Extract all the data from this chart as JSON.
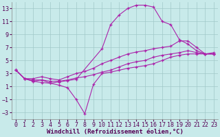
{
  "background_color": "#c8eaea",
  "grid_color": "#a0c8c8",
  "line_color": "#aa22aa",
  "xlim": [
    -0.5,
    23.5
  ],
  "ylim": [
    -4,
    14
  ],
  "xticks": [
    0,
    1,
    2,
    3,
    4,
    5,
    6,
    7,
    8,
    9,
    10,
    11,
    12,
    13,
    14,
    15,
    16,
    17,
    18,
    19,
    20,
    21,
    22,
    23
  ],
  "yticks": [
    -3,
    -1,
    1,
    3,
    5,
    7,
    9,
    11,
    13
  ],
  "xlabel": "Windchill (Refroidissement éolien,°C)",
  "xlabel_fontsize": 6.5,
  "tick_fontsize": 6.0,
  "series": [
    {
      "x": [
        0,
        1,
        2,
        3,
        4,
        5,
        6,
        7,
        10,
        11,
        12,
        13,
        14,
        15,
        16,
        17,
        18,
        19,
        20,
        21,
        22,
        23
      ],
      "y": [
        3.5,
        2.2,
        1.8,
        1.6,
        1.5,
        1.7,
        1.9,
        2.1,
        6.8,
        10.5,
        12.0,
        13.0,
        13.5,
        13.5,
        13.2,
        11.0,
        10.5,
        8.2,
        7.5,
        6.5,
        6.0,
        6.0
      ]
    },
    {
      "x": [
        0,
        1,
        2,
        3,
        4,
        5,
        6,
        7,
        8,
        9,
        10,
        11,
        12,
        13,
        14,
        15,
        16,
        17,
        18,
        19,
        20,
        21,
        22,
        23
      ],
      "y": [
        3.5,
        2.2,
        1.8,
        2.0,
        1.5,
        1.2,
        0.8,
        -1.0,
        -3.2,
        1.3,
        3.0,
        3.2,
        3.5,
        3.8,
        4.0,
        4.2,
        4.5,
        5.0,
        5.5,
        5.8,
        6.0,
        6.0,
        6.0,
        6.2
      ]
    },
    {
      "x": [
        0,
        1,
        2,
        3,
        4,
        5,
        6,
        7,
        8,
        9,
        10,
        11,
        12,
        13,
        14,
        15,
        16,
        17,
        18,
        19,
        20,
        21,
        22,
        23
      ],
      "y": [
        3.5,
        2.2,
        2.2,
        2.5,
        2.2,
        2.0,
        2.5,
        3.0,
        3.3,
        3.8,
        4.5,
        5.0,
        5.5,
        6.0,
        6.3,
        6.5,
        6.8,
        7.0,
        7.2,
        8.0,
        8.0,
        7.0,
        6.0,
        6.0
      ]
    },
    {
      "x": [
        0,
        1,
        2,
        3,
        4,
        5,
        6,
        7,
        8,
        9,
        10,
        11,
        12,
        13,
        14,
        15,
        16,
        17,
        18,
        19,
        20,
        21,
        22,
        23
      ],
      "y": [
        3.5,
        2.2,
        2.0,
        2.0,
        1.8,
        1.8,
        2.0,
        2.3,
        2.5,
        2.8,
        3.2,
        3.5,
        4.0,
        4.5,
        4.8,
        5.0,
        5.5,
        5.8,
        6.0,
        6.2,
        6.5,
        6.2,
        6.0,
        6.0
      ]
    }
  ]
}
